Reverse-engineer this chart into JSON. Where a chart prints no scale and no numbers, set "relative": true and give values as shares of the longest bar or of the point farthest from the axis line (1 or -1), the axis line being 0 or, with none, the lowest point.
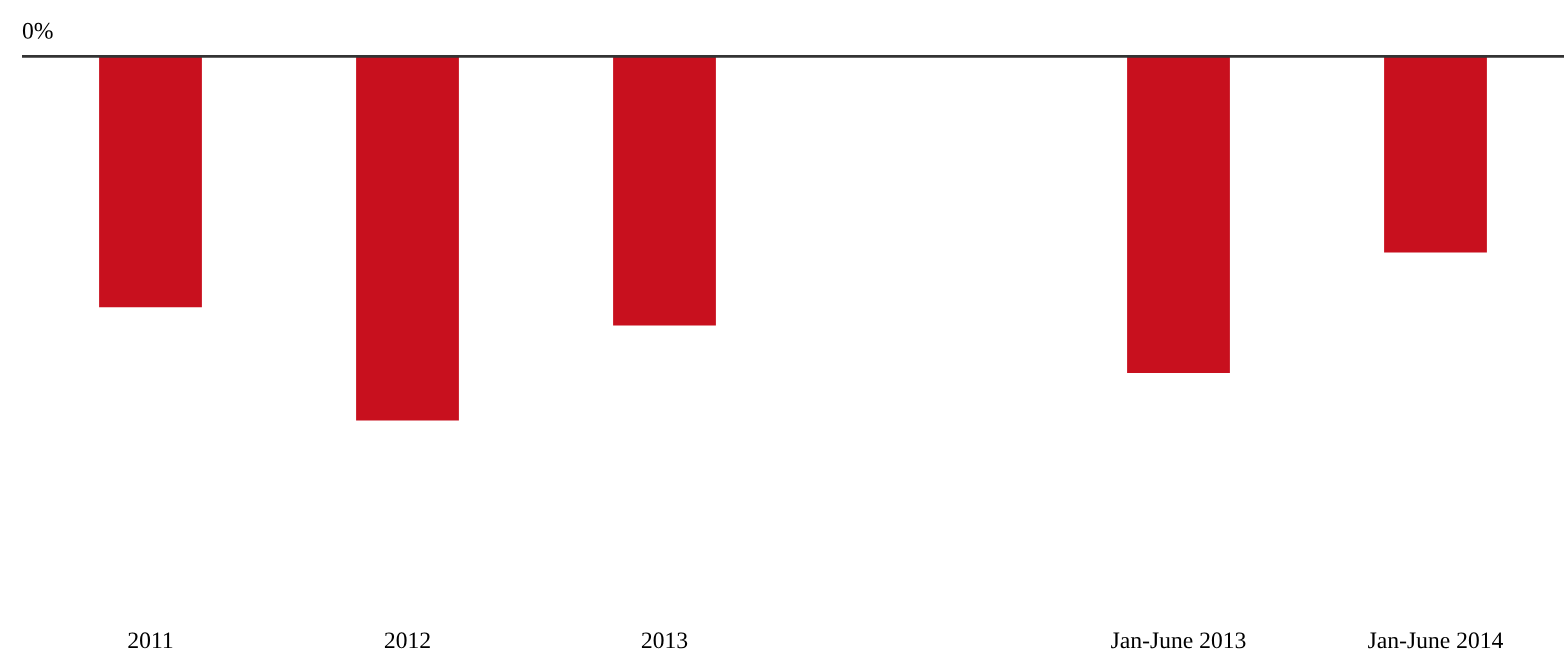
{
  "chart_data": {
    "type": "bar",
    "relative": true,
    "categories": [
      "2011",
      "2012",
      "2013",
      null,
      "Jan-June 2013",
      "Jan-June 2014"
    ],
    "values": [
      -0.69,
      -1,
      -0.74,
      null,
      -0.87,
      -0.54
    ],
    "color": "#c8101e",
    "annotations": [
      "0%"
    ],
    "grid": false,
    "legend": false
  }
}
